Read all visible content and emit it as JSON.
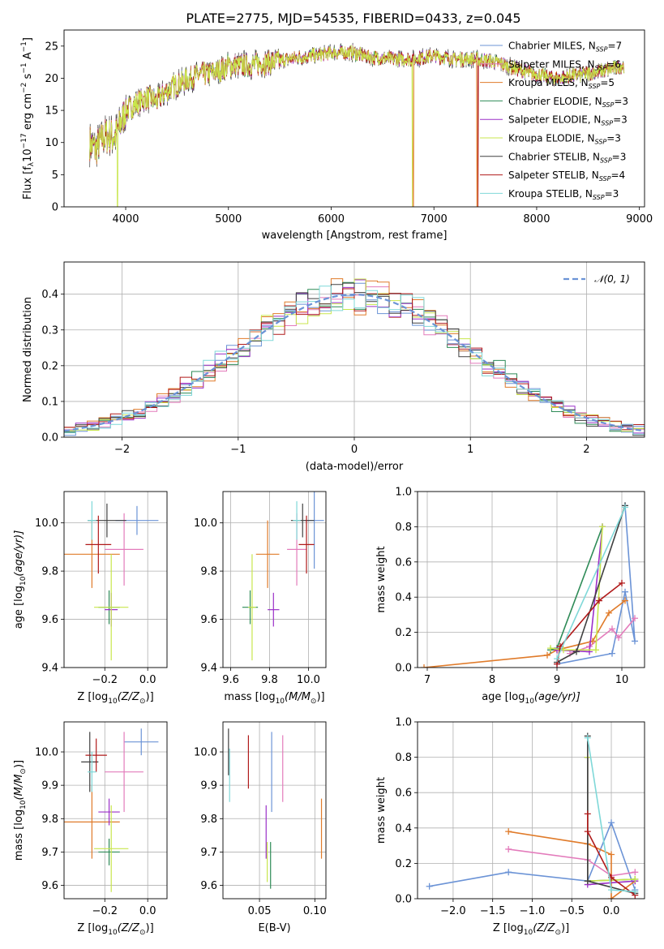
{
  "figure": {
    "title": "PLATE=2775, MJD=54535, FIBERID=0433, z=0.045"
  },
  "series": [
    {
      "name": "Chabrier MILES, N",
      "n": "7",
      "color": "#6b93d6"
    },
    {
      "name": "Salpeter MILES, N",
      "n": "6",
      "color": "#e37bbb"
    },
    {
      "name": "Kroupa MILES, N",
      "n": "5",
      "color": "#e07b2a"
    },
    {
      "name": "Chabrier ELODIE, N",
      "n": "3",
      "color": "#2e8b57"
    },
    {
      "name": "Salpeter ELODIE, N",
      "n": "3",
      "color": "#9b30c8"
    },
    {
      "name": "Kroupa ELODIE, N",
      "n": "3",
      "color": "#c8e64c"
    },
    {
      "name": "Chabrier STELIB, N",
      "n": "3",
      "color": "#404040"
    },
    {
      "name": "Salpeter STELIB, N",
      "n": "4",
      "color": "#b01a1a"
    },
    {
      "name": "Kroupa STELIB, N",
      "n": "3",
      "color": "#7fd8d8"
    }
  ],
  "chart_data": [
    {
      "id": "spectrum",
      "type": "line",
      "title": "PLATE=2775, MJD=54535, FIBERID=0433, z=0.045",
      "xlabel": "wavelength [Angstrom, rest frame]",
      "ylabel": "Flux [f",
      "xlim": [
        3400,
        9050
      ],
      "ylim": [
        0,
        27.5
      ],
      "xticks": [
        "4000",
        "5000",
        "6000",
        "7000",
        "8000",
        "9000"
      ],
      "yticks": [
        "0",
        "5",
        "10",
        "15",
        "20",
        "25"
      ],
      "x_range": [
        3650,
        8850
      ],
      "continuum": [
        [
          3650,
          10
        ],
        [
          3700,
          9
        ],
        [
          3800,
          11
        ],
        [
          3900,
          11
        ],
        [
          4000,
          15
        ],
        [
          4100,
          16
        ],
        [
          4200,
          17
        ],
        [
          4300,
          16.5
        ],
        [
          4400,
          18
        ],
        [
          4500,
          19
        ],
        [
          4700,
          20.5
        ],
        [
          4900,
          21
        ],
        [
          5000,
          22
        ],
        [
          5200,
          22
        ],
        [
          5400,
          22.5
        ],
        [
          5600,
          23
        ],
        [
          5800,
          23.5
        ],
        [
          6000,
          24
        ],
        [
          6200,
          24
        ],
        [
          6400,
          23.2
        ],
        [
          6600,
          23
        ],
        [
          6800,
          23
        ],
        [
          7000,
          23.5
        ],
        [
          7200,
          23
        ],
        [
          7400,
          23
        ],
        [
          7600,
          22.5
        ],
        [
          7800,
          21.5
        ],
        [
          8000,
          20.5
        ],
        [
          8200,
          20
        ],
        [
          8400,
          20.5
        ],
        [
          8600,
          21
        ],
        [
          8850,
          22
        ]
      ],
      "drops": [
        {
          "x": 3920,
          "series": 5
        },
        {
          "x": 6790,
          "series": 5
        },
        {
          "x": 6800,
          "series": 2
        },
        {
          "x": 7420,
          "series": 2
        },
        {
          "x": 7430,
          "series": 7
        }
      ],
      "legend": "top-right"
    },
    {
      "id": "residuals",
      "type": "histogram",
      "xlabel": "(data-model)/error",
      "ylabel": "Normed distribution",
      "xlim": [
        -2.5,
        2.5
      ],
      "ylim": [
        0,
        0.49
      ],
      "xticks": [
        "−2",
        "−1",
        "0",
        "1",
        "2"
      ],
      "yticks": [
        "0.0",
        "0.1",
        "0.2",
        "0.3",
        "0.4"
      ],
      "bin_width": 0.1,
      "model": "𝒩(0, 1)",
      "grid": true,
      "legend": "top-right"
    },
    {
      "id": "age-vs-Z",
      "type": "scatter",
      "xlabel": "Z [log",
      "ylabel": "age  [log",
      "xlim": [
        -0.39,
        0.09
      ],
      "ylim": [
        9.4,
        10.13
      ],
      "xticks": [
        "−0.2",
        "0.0"
      ],
      "yticks": [
        "9.4",
        "9.6",
        "9.8",
        "10.0"
      ],
      "points": [
        {
          "series": 0,
          "x": -0.05,
          "y": 10.01,
          "xerr": 0.1,
          "yerr": 0.06
        },
        {
          "series": 1,
          "x": -0.11,
          "y": 9.89,
          "xerr": 0.09,
          "yerr": 0.15
        },
        {
          "series": 2,
          "x": -0.26,
          "y": 9.87,
          "xerr": 0.13,
          "yerr": 0.14
        },
        {
          "series": 3,
          "x": -0.18,
          "y": 9.65,
          "xerr": 0.05,
          "yerr": 0.07
        },
        {
          "series": 4,
          "x": -0.17,
          "y": 9.64,
          "xerr": 0.03,
          "yerr": 0.07
        },
        {
          "series": 5,
          "x": -0.17,
          "y": 9.65,
          "xerr": 0.08,
          "yerr": 0.22
        },
        {
          "series": 6,
          "x": -0.19,
          "y": 10.01,
          "xerr": 0.09,
          "yerr": 0.07
        },
        {
          "series": 7,
          "x": -0.23,
          "y": 9.91,
          "xerr": 0.06,
          "yerr": 0.12
        },
        {
          "series": 8,
          "x": -0.26,
          "y": 10.01,
          "xerr": 0.02,
          "yerr": 0.08
        }
      ]
    },
    {
      "id": "age-vs-mass",
      "type": "scatter",
      "xlabel": "mass [log",
      "ylabel": "",
      "xlim": [
        9.56,
        10.09
      ],
      "ylim": [
        9.4,
        10.13
      ],
      "xticks": [
        "9.6",
        "9.8",
        "10.0"
      ],
      "yticks": [
        "9.4",
        "9.6",
        "9.8",
        "10.0"
      ],
      "points": [
        {
          "series": 0,
          "x": 10.03,
          "y": 10.01,
          "xerr": 0.05,
          "yerr": 0.2
        },
        {
          "series": 1,
          "x": 9.94,
          "y": 9.89,
          "xerr": 0.05,
          "yerr": 0.15
        },
        {
          "series": 2,
          "x": 9.79,
          "y": 9.87,
          "xerr": 0.06,
          "yerr": 0.14
        },
        {
          "series": 3,
          "x": 9.7,
          "y": 9.65,
          "xerr": 0.04,
          "yerr": 0.07
        },
        {
          "series": 4,
          "x": 9.82,
          "y": 9.64,
          "xerr": 0.03,
          "yerr": 0.07
        },
        {
          "series": 5,
          "x": 9.71,
          "y": 9.65,
          "xerr": 0.02,
          "yerr": 0.22
        },
        {
          "series": 6,
          "x": 9.97,
          "y": 10.01,
          "xerr": 0.06,
          "yerr": 0.07
        },
        {
          "series": 7,
          "x": 9.99,
          "y": 9.91,
          "xerr": 0.04,
          "yerr": 0.12
        },
        {
          "series": 8,
          "x": 9.94,
          "y": 10.01,
          "xerr": 0.02,
          "yerr": 0.08
        }
      ]
    },
    {
      "id": "weight-vs-age",
      "type": "line",
      "xlabel": "age  [log",
      "ylabel": "mass weight",
      "xlim": [
        6.85,
        10.35
      ],
      "ylim": [
        0,
        1
      ],
      "xticks": [
        "7",
        "8",
        "9",
        "10"
      ],
      "yticks": [
        "0.0",
        "0.2",
        "0.4",
        "0.6",
        "0.8",
        "1.0"
      ],
      "lines": [
        {
          "series": 0,
          "points": [
            [
              9.0,
              0.02
            ],
            [
              9.85,
              0.08
            ],
            [
              10.05,
              0.43
            ],
            [
              10.2,
              0.15
            ],
            [
              10.05,
              0.92
            ]
          ]
        },
        {
          "series": 1,
          "points": [
            [
              9.2,
              0.08
            ],
            [
              9.5,
              0.12
            ],
            [
              9.85,
              0.22
            ],
            [
              9.95,
              0.17
            ],
            [
              10.2,
              0.28
            ]
          ]
        },
        {
          "series": 2,
          "points": [
            [
              6.95,
              0.0
            ],
            [
              8.85,
              0.07
            ],
            [
              9.0,
              0.1
            ],
            [
              9.55,
              0.15
            ],
            [
              9.8,
              0.31
            ],
            [
              10.05,
              0.38
            ]
          ]
        },
        {
          "series": 3,
          "points": [
            [
              8.9,
              0.1
            ],
            [
              9.0,
              0.11
            ],
            [
              9.7,
              0.8
            ]
          ]
        },
        {
          "series": 4,
          "points": [
            [
              9.0,
              0.1
            ],
            [
              9.5,
              0.09
            ],
            [
              9.7,
              0.8
            ]
          ]
        },
        {
          "series": 5,
          "points": [
            [
              8.9,
              0.11
            ],
            [
              9.1,
              0.1
            ],
            [
              9.6,
              0.1
            ],
            [
              9.7,
              0.8
            ]
          ]
        },
        {
          "series": 6,
          "points": [
            [
              9.0,
              0.03
            ],
            [
              9.3,
              0.09
            ],
            [
              10.05,
              0.92
            ]
          ]
        },
        {
          "series": 7,
          "points": [
            [
              9.0,
              0.02
            ],
            [
              9.05,
              0.12
            ],
            [
              9.65,
              0.38
            ],
            [
              10.0,
              0.48
            ]
          ]
        },
        {
          "series": 8,
          "points": [
            [
              9.0,
              0.05
            ],
            [
              10.05,
              0.91
            ]
          ]
        }
      ]
    },
    {
      "id": "mass-vs-Z",
      "type": "scatter",
      "xlabel": "Z [log",
      "ylabel": "mass [log",
      "xlim": [
        -0.39,
        0.09
      ],
      "ylim": [
        9.56,
        10.09
      ],
      "xticks": [
        "−0.2",
        "0.0"
      ],
      "yticks": [
        "9.6",
        "9.7",
        "9.8",
        "9.9",
        "10.0"
      ],
      "points": [
        {
          "series": 0,
          "x": -0.03,
          "y": 10.03,
          "xerr": 0.08,
          "yerr": 0.04
        },
        {
          "series": 1,
          "x": -0.11,
          "y": 9.94,
          "xerr": 0.09,
          "yerr": 0.12
        },
        {
          "series": 2,
          "x": -0.26,
          "y": 9.79,
          "xerr": 0.13,
          "yerr": 0.11
        },
        {
          "series": 3,
          "x": -0.18,
          "y": 9.7,
          "xerr": 0.05,
          "yerr": 0.04
        },
        {
          "series": 4,
          "x": -0.18,
          "y": 9.82,
          "xerr": 0.05,
          "yerr": 0.04
        },
        {
          "series": 5,
          "x": -0.17,
          "y": 9.71,
          "xerr": 0.08,
          "yerr": 0.13
        },
        {
          "series": 6,
          "x": -0.27,
          "y": 9.97,
          "xerr": 0.04,
          "yerr": 0.09
        },
        {
          "series": 7,
          "x": -0.24,
          "y": 9.99,
          "xerr": 0.05,
          "yerr": 0.05
        },
        {
          "series": 8,
          "x": -0.26,
          "y": 9.94,
          "xerr": 0.02,
          "yerr": 0.06
        }
      ]
    },
    {
      "id": "mass-vs-ebv",
      "type": "scatter",
      "xlabel": "E(B-V)",
      "ylabel": "",
      "xlim": [
        0.017,
        0.11
      ],
      "ylim": [
        9.56,
        10.09
      ],
      "xticks": [
        "0.05",
        "0.10"
      ],
      "yticks": [
        "9.6",
        "9.7",
        "9.8",
        "9.9",
        "10.0"
      ],
      "points": [
        {
          "series": 0,
          "x": 0.061,
          "y": 9.94,
          "yerr": 0.12
        },
        {
          "series": 1,
          "x": 0.071,
          "y": 9.95,
          "yerr": 0.1
        },
        {
          "series": 2,
          "x": 0.106,
          "y": 9.77,
          "yerr": 0.09
        },
        {
          "series": 3,
          "x": 0.06,
          "y": 9.66,
          "yerr": 0.07
        },
        {
          "series": 4,
          "x": 0.056,
          "y": 9.76,
          "yerr": 0.08
        },
        {
          "series": 5,
          "x": 0.057,
          "y": 9.67,
          "yerr": 0.06
        },
        {
          "series": 6,
          "x": 0.022,
          "y": 10.0,
          "yerr": 0.07
        },
        {
          "series": 7,
          "x": 0.04,
          "y": 9.97,
          "yerr": 0.08
        },
        {
          "series": 8,
          "x": 0.023,
          "y": 9.93,
          "yerr": 0.08
        }
      ]
    },
    {
      "id": "weight-vs-Z",
      "type": "line",
      "xlabel": "Z [log",
      "ylabel": "mass weight",
      "xlim": [
        -2.45,
        0.42
      ],
      "ylim": [
        0,
        1
      ],
      "xticks": [
        "−2.0",
        "−1.5",
        "−1.0",
        "−0.5",
        "0.0"
      ],
      "yticks": [
        "0.0",
        "0.2",
        "0.4",
        "0.6",
        "0.8",
        "1.0"
      ],
      "lines": [
        {
          "series": 0,
          "points": [
            [
              -2.3,
              0.07
            ],
            [
              -1.3,
              0.15
            ],
            [
              -0.3,
              0.1
            ],
            [
              0.0,
              0.43
            ],
            [
              0.3,
              0.05
            ]
          ]
        },
        {
          "series": 1,
          "points": [
            [
              -1.3,
              0.28
            ],
            [
              -0.3,
              0.22
            ],
            [
              0.0,
              0.13
            ],
            [
              0.3,
              0.15
            ]
          ]
        },
        {
          "series": 2,
          "points": [
            [
              -1.3,
              0.38
            ],
            [
              -0.3,
              0.31
            ],
            [
              0.0,
              0.25
            ],
            [
              0.0,
              0.0
            ],
            [
              0.3,
              0.1
            ]
          ]
        },
        {
          "series": 3,
          "points": [
            [
              -0.3,
              0.8
            ],
            [
              -0.3,
              0.1
            ],
            [
              0.3,
              0.11
            ]
          ]
        },
        {
          "series": 4,
          "points": [
            [
              -0.3,
              0.8
            ],
            [
              -0.3,
              0.08
            ],
            [
              0.3,
              0.1
            ]
          ]
        },
        {
          "series": 5,
          "points": [
            [
              -0.3,
              0.8
            ],
            [
              -0.3,
              0.1
            ],
            [
              0.3,
              0.11
            ]
          ]
        },
        {
          "series": 6,
          "points": [
            [
              -0.3,
              0.92
            ],
            [
              -0.3,
              0.1
            ],
            [
              0.3,
              0.03
            ]
          ]
        },
        {
          "series": 7,
          "points": [
            [
              -0.3,
              0.48
            ],
            [
              -0.3,
              0.38
            ],
            [
              0.0,
              0.12
            ],
            [
              0.3,
              0.02
            ]
          ]
        },
        {
          "series": 8,
          "points": [
            [
              -0.3,
              0.91
            ],
            [
              0.0,
              0.05
            ],
            [
              0.3,
              0.04
            ]
          ]
        }
      ]
    }
  ]
}
